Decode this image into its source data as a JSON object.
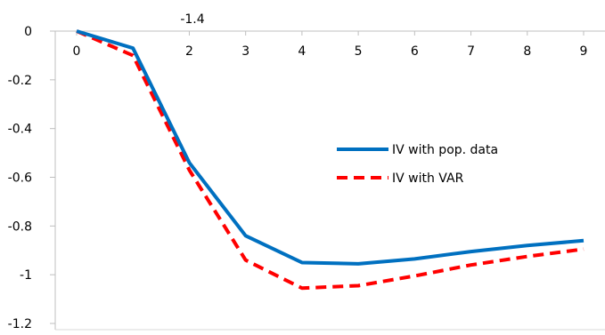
{
  "chart_data": {
    "type": "line",
    "title": "",
    "xlabel": "",
    "ylabel": "",
    "x": [
      0,
      1,
      2,
      3,
      4,
      5,
      6,
      7,
      8,
      9
    ],
    "xlim": [
      0,
      9
    ],
    "x_tick_labels": [
      "0",
      "2",
      "3",
      "4",
      "5",
      "6",
      "7",
      "8",
      "9"
    ],
    "x_tick_values": [
      0,
      2,
      3,
      4,
      5,
      6,
      7,
      8,
      9
    ],
    "ylim": [
      -1.2,
      0
    ],
    "y_tick_labels": [
      "0",
      "-0.2",
      "-0.4",
      "-0.6",
      "-0.8",
      "-1",
      "-1.2"
    ],
    "y_tick_values": [
      0,
      -0.2,
      -0.4,
      -0.6,
      -0.8,
      -1,
      -1.2
    ],
    "overlay_label": "-1.4",
    "grid": false,
    "legend_position": "right-center",
    "series": [
      {
        "name": "IV with pop. data",
        "color": "#0070C0",
        "style": "solid",
        "values": [
          0,
          -0.07,
          -0.54,
          -0.84,
          -0.95,
          -0.955,
          -0.935,
          -0.905,
          -0.88,
          -0.86
        ]
      },
      {
        "name": "IV with VAR",
        "color": "#FF0000",
        "style": "dashed",
        "values": [
          0,
          -0.1,
          -0.57,
          -0.94,
          -1.055,
          -1.045,
          -1.005,
          -0.96,
          -0.925,
          -0.895
        ]
      }
    ]
  }
}
